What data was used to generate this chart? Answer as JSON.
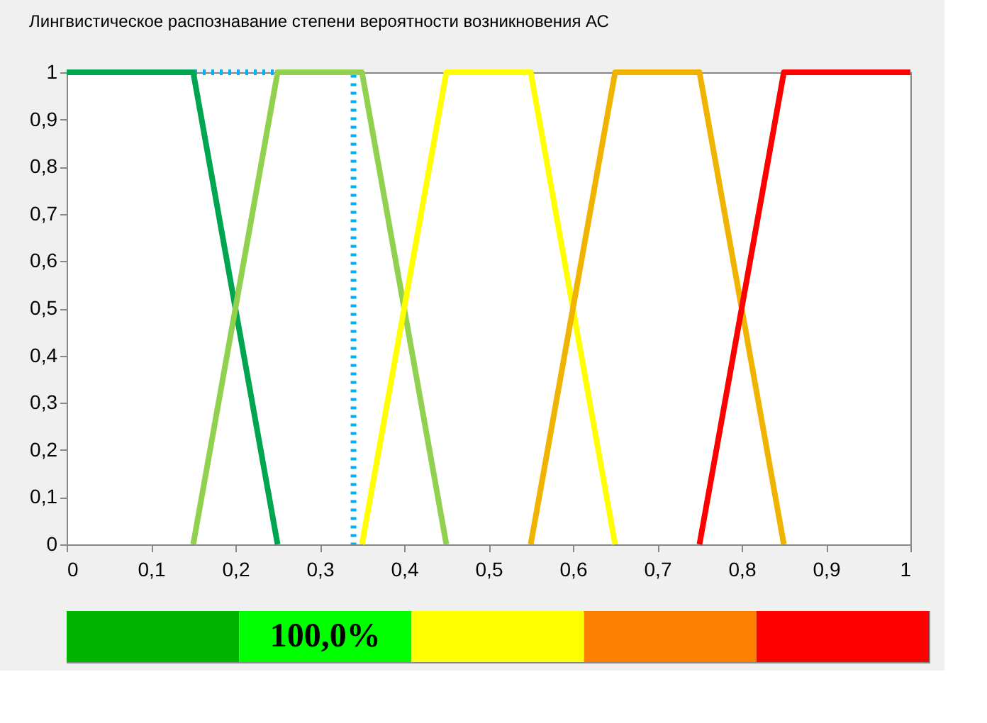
{
  "chart_data": [
    {
      "type": "line",
      "title": "Лингвистическое распознавание степени вероятности возникновения АС",
      "xlim": [
        0,
        1
      ],
      "ylim": [
        0,
        1
      ],
      "xticks": [
        0,
        {
          "value": 0.1,
          "label": "0,1"
        },
        {
          "value": 0.2,
          "label": "0,2"
        },
        {
          "value": 0.3,
          "label": "0,3"
        },
        {
          "value": 0.4,
          "label": "0,4"
        },
        {
          "value": 0.5,
          "label": "0,5"
        },
        {
          "value": 0.6,
          "label": "0,6"
        },
        {
          "value": 0.7,
          "label": "0,7"
        },
        {
          "value": 0.8,
          "label": "0,8"
        },
        {
          "value": 0.9,
          "label": "0,9"
        },
        1
      ],
      "yticks": [
        0,
        {
          "value": 0.1,
          "label": "0,1"
        },
        {
          "value": 0.2,
          "label": "0,2"
        },
        {
          "value": 0.3,
          "label": "0,3"
        },
        {
          "value": 0.4,
          "label": "0,4"
        },
        {
          "value": 0.5,
          "label": "0,5"
        },
        {
          "value": 0.6,
          "label": "0,6"
        },
        {
          "value": 0.7,
          "label": "0,7"
        },
        {
          "value": 0.8,
          "label": "0,8"
        },
        {
          "value": 0.9,
          "label": "0,9"
        },
        1
      ],
      "grid": false,
      "legend": false,
      "marker": "none",
      "series": [
        {
          "color": "#00b0f0",
          "line_style": "dotted",
          "x": [
            0,
            0.34,
            0.34
          ],
          "values": [
            1,
            1,
            0
          ]
        },
        {
          "color": "#00a64f",
          "line_style": "solid",
          "x": [
            0,
            0.15,
            0.25
          ],
          "values": [
            1,
            1,
            0
          ]
        },
        {
          "color": "#92d050",
          "line_style": "solid",
          "x": [
            0.15,
            0.25,
            0.35,
            0.45
          ],
          "values": [
            0,
            1,
            1,
            0
          ]
        },
        {
          "color": "#ffff00",
          "line_style": "solid",
          "x": [
            0.35,
            0.45,
            0.55,
            0.65
          ],
          "values": [
            0,
            1,
            1,
            0
          ]
        },
        {
          "color": "#f0b400",
          "line_style": "solid",
          "x": [
            0.55,
            0.65,
            0.75,
            0.85
          ],
          "values": [
            0,
            1,
            1,
            0
          ]
        },
        {
          "color": "#ff0000",
          "line_style": "solid",
          "x": [
            0.75,
            0.85,
            1
          ],
          "values": [
            0,
            1,
            1
          ]
        }
      ]
    },
    {
      "type": "other",
      "categories": [
        null,
        null,
        null,
        null,
        null
      ],
      "colors": [
        "#00b400",
        "#00ff00",
        "#ffff00",
        "#ff8000",
        "#ff0000"
      ],
      "value_labels": [
        null,
        "100,0%",
        null,
        null,
        null
      ]
    }
  ]
}
